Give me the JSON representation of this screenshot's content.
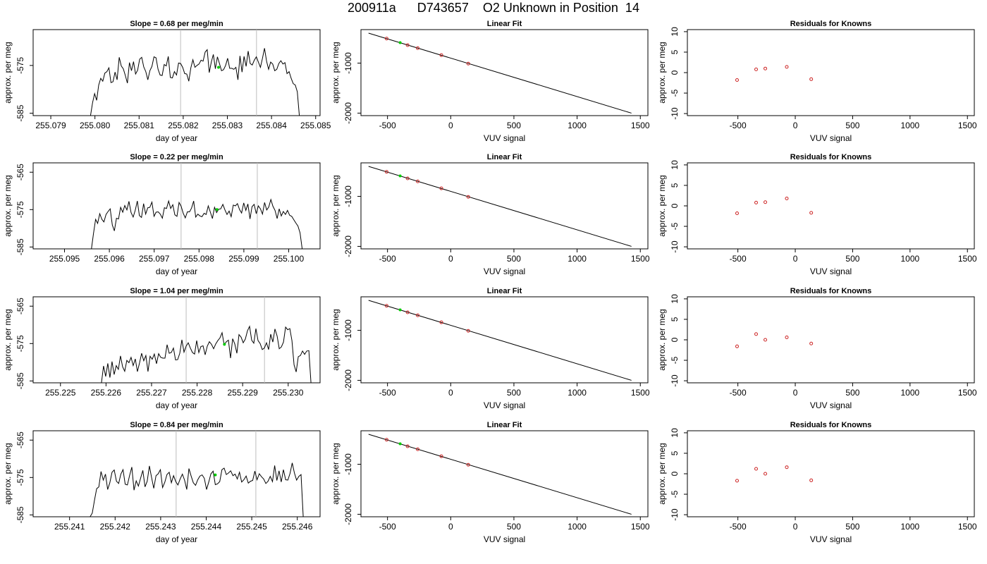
{
  "header": {
    "title": "200911a      D743657    O2 Unknown in Position  14"
  },
  "chart_data": {
    "type": "grid",
    "rows": [
      {
        "timeseries": {
          "type": "line",
          "title": "Slope =  0.68  per meg/min",
          "xlabel": "day of year",
          "ylabel": "approx. per meg",
          "xlim": [
            255.0786,
            255.0851
          ],
          "ylim": [
            -585.5,
            -567.5
          ],
          "xticks": [
            "255.079",
            "255.080",
            "255.081",
            "255.082",
            "255.083",
            "255.084",
            "255.085"
          ],
          "yticks": [
            "-585",
            "-575"
          ],
          "vlines": [
            255.08194,
            255.08366
          ],
          "marker": {
            "x": 255.0828,
            "y": -575.4
          },
          "x_start": 255.0799,
          "x_end": 255.08463,
          "y": [
            -585.5,
            -582.8,
            -580.9,
            -582.3,
            -579.1,
            -577.7,
            -578.3,
            -576.6,
            -576.3,
            -575.5,
            -578.6,
            -578.4,
            -576.4,
            -578.0,
            -573.3,
            -575.1,
            -575.7,
            -577.1,
            -578.7,
            -574.4,
            -576.1,
            -574.2,
            -576.8,
            -576.0,
            -573.7,
            -573.3,
            -575.3,
            -576.3,
            -578.0,
            -576.1,
            -575.2,
            -573.2,
            -573.4,
            -575.8,
            -577.0,
            -577.1,
            -574.8,
            -575.1,
            -573.1,
            -577.5,
            -577.6,
            -576.3,
            -577.0,
            -574.5,
            -574.6,
            -575.4,
            -576.7,
            -576.8,
            -578.3,
            -575.5,
            -573.8,
            -575.4,
            -575.0,
            -574.7,
            -573.9,
            -574.1,
            -572.2,
            -571.7,
            -576.5,
            -574.3,
            -572.7,
            -575.7,
            -573.2,
            -574.6,
            -576.1,
            -575.9,
            -575.0,
            -573.5,
            -575.6,
            -575.6,
            -575.8,
            -575.4,
            -578.0,
            -573.0,
            -576.4,
            -573.1,
            -575.2,
            -572.0,
            -574.6,
            -574.9,
            -573.9,
            -573.2,
            -574.3,
            -575.4,
            -573.5,
            -571.4,
            -574.1,
            -575.8,
            -574.3,
            -574.7,
            -576.1,
            -575.8,
            -574.6,
            -574.0,
            -574.7,
            -574.4,
            -576.7,
            -576.3,
            -577.7,
            -578.8,
            -579.1,
            -580.5,
            -585.5
          ]
        },
        "fit": {
          "type": "line",
          "title": "Linear Fit",
          "xlabel": "VUV signal",
          "ylabel": "approx. per meg",
          "xlim": [
            -710,
            1560
          ],
          "ylim": [
            -2050,
            -330
          ],
          "xticks": [
            "-500",
            "0",
            "500",
            "1000",
            "1500"
          ],
          "yticks": [
            "-1000",
            "-2000"
          ],
          "line": {
            "x": [
              -650,
              1430
            ],
            "y": [
              -400,
              -2000
            ]
          },
          "knowns": {
            "x": [
              -507,
              -341,
              -261,
              -74,
              139
            ],
            "y": [
              -510,
              -640,
              -700,
              -840,
              -1010
            ]
          },
          "unknown": {
            "x": -400,
            "y": -590
          }
        },
        "residuals": {
          "type": "scatter",
          "title": "Residuals for Knowns",
          "xlabel": "VUV signal",
          "ylabel": "approx. per meg",
          "xlim": [
            -940,
            1560
          ],
          "ylim": [
            -10.5,
            10.5
          ],
          "xticks": [
            "-500",
            "0",
            "500",
            "1000",
            "1500"
          ],
          "yticks": [
            "-10",
            "-5",
            "0",
            "5",
            "10"
          ],
          "x": [
            -507,
            -341,
            -261,
            -74,
            139
          ],
          "y": [
            -1.8,
            0.8,
            1.0,
            1.4,
            -1.6
          ]
        }
      },
      {
        "timeseries": {
          "type": "line",
          "title": "Slope =  0.22  per meg/min",
          "xlabel": "day of year",
          "ylabel": "approx. per meg",
          "xlim": [
            255.0943,
            255.1007
          ],
          "ylim": [
            -585.5,
            -562.5
          ],
          "xticks": [
            "255.095",
            "255.096",
            "255.097",
            "255.098",
            "255.099",
            "255.100"
          ],
          "yticks": [
            "-585",
            "-575",
            "-565"
          ],
          "vlines": [
            255.0976,
            255.0993
          ],
          "marker": {
            "x": 255.0984,
            "y": -575.0
          },
          "x_start": 255.0956,
          "x_end": 255.1003,
          "y": [
            -585.5,
            -581.4,
            -577.6,
            -578.7,
            -576.1,
            -577.6,
            -578.3,
            -576.3,
            -575.5,
            -574.8,
            -579.1,
            -580.7,
            -577.3,
            -577.5,
            -574.4,
            -575.7,
            -573.9,
            -575.1,
            -572.8,
            -575.8,
            -577.0,
            -575.2,
            -572.7,
            -576.6,
            -577.1,
            -573.4,
            -576.2,
            -574.5,
            -574.4,
            -573.0,
            -576.8,
            -575.7,
            -575.6,
            -576.2,
            -577.3,
            -574.5,
            -574.7,
            -572.7,
            -574.7,
            -573.7,
            -576.4,
            -576.8,
            -573.1,
            -574.1,
            -576.0,
            -577.2,
            -575.6,
            -575.6,
            -574.6,
            -572.7,
            -577.0,
            -576.2,
            -576.7,
            -576.9,
            -576.0,
            -576.3,
            -574.0,
            -575.7,
            -577.4,
            -574.4,
            -575.8,
            -574.9,
            -574.8,
            -573.6,
            -575.1,
            -576.3,
            -575.4,
            -576.9,
            -573.8,
            -574.0,
            -573.4,
            -575.0,
            -575.9,
            -573.2,
            -575.2,
            -573.5,
            -577.5,
            -574.2,
            -573.6,
            -576.1,
            -574.0,
            -574.8,
            -576.2,
            -573.1,
            -575.1,
            -574.3,
            -572.3,
            -574.1,
            -575.2,
            -577.4,
            -574.8,
            -576.7,
            -575.5,
            -576.3,
            -575.2,
            -576.5,
            -576.8,
            -577.7,
            -578.6,
            -579.4,
            -581.2,
            -585.5
          ]
        },
        "fit": {
          "type": "line",
          "title": "Linear Fit",
          "xlabel": "VUV signal",
          "ylabel": "approx. per meg",
          "xlim": [
            -710,
            1560
          ],
          "ylim": [
            -2050,
            -330
          ],
          "xticks": [
            "-500",
            "0",
            "500",
            "1000",
            "1500"
          ],
          "yticks": [
            "-1000",
            "-2000"
          ],
          "line": {
            "x": [
              -650,
              1430
            ],
            "y": [
              -400,
              -2000
            ]
          },
          "knowns": {
            "x": [
              -507,
              -341,
              -261,
              -74,
              139
            ],
            "y": [
              -510,
              -640,
              -700,
              -840,
              -1010
            ]
          },
          "unknown": {
            "x": -400,
            "y": -590
          }
        },
        "residuals": {
          "type": "scatter",
          "title": "Residuals for Knowns",
          "xlabel": "VUV signal",
          "ylabel": "approx. per meg",
          "xlim": [
            -940,
            1560
          ],
          "ylim": [
            -10.5,
            10.5
          ],
          "xticks": [
            "-500",
            "0",
            "500",
            "1000",
            "1500"
          ],
          "yticks": [
            "-10",
            "-5",
            "0",
            "5",
            "10"
          ],
          "x": [
            -507,
            -341,
            -261,
            -74,
            139
          ],
          "y": [
            -1.8,
            0.8,
            0.9,
            1.8,
            -1.7
          ]
        }
      },
      {
        "timeseries": {
          "type": "line",
          "title": "Slope =  1.04  per meg/min",
          "xlabel": "day of year",
          "ylabel": "approx. per meg",
          "xlim": [
            255.2244,
            255.2307
          ],
          "ylim": [
            -585.5,
            -562.5
          ],
          "xticks": [
            "255.225",
            "255.226",
            "255.227",
            "255.228",
            "255.229",
            "255.230"
          ],
          "yticks": [
            "-585",
            "-575",
            "-565"
          ],
          "vlines": [
            255.22776,
            255.22948
          ],
          "marker": {
            "x": 255.2286,
            "y": -575.2
          },
          "x_start": 255.2259,
          "x_end": 255.2305,
          "y": [
            -585.5,
            -581.0,
            -583.8,
            -580.3,
            -584.1,
            -579.8,
            -583.3,
            -580.9,
            -581.9,
            -578.3,
            -581.2,
            -582.4,
            -579.5,
            -580.1,
            -578.7,
            -580.9,
            -579.1,
            -582.5,
            -580.2,
            -577.6,
            -579.6,
            -578.2,
            -582.5,
            -578.4,
            -579.2,
            -577.8,
            -580.4,
            -577.7,
            -578.7,
            -578.9,
            -578.9,
            -575.3,
            -577.6,
            -577.4,
            -576.2,
            -579.4,
            -579.3,
            -577.6,
            -574.0,
            -577.3,
            -575.7,
            -574.8,
            -576.2,
            -577.4,
            -577.8,
            -574.2,
            -577.4,
            -575.8,
            -575.6,
            -578.0,
            -575.7,
            -574.5,
            -575.2,
            -576.4,
            -575.1,
            -574.2,
            -573.5,
            -572.1,
            -575.4,
            -574.5,
            -574.1,
            -578.9,
            -573.7,
            -575.1,
            -577.6,
            -572.6,
            -573.3,
            -574.8,
            -573.8,
            -571.6,
            -570.4,
            -574.1,
            -574.9,
            -571.0,
            -574.2,
            -575.0,
            -576.6,
            -576.2,
            -574.8,
            -576.6,
            -572.5,
            -574.6,
            -571.1,
            -573.0,
            -576.4,
            -575.9,
            -574.6,
            -570.6,
            -571.3,
            -571.0,
            -574.2,
            -580.7,
            -582.6,
            -578.5,
            -578.2,
            -577.0,
            -577.9,
            -577.0,
            -576.9,
            -585.5
          ]
        },
        "fit": {
          "type": "line",
          "title": "Linear Fit",
          "xlabel": "VUV signal",
          "ylabel": "approx. per meg",
          "xlim": [
            -710,
            1560
          ],
          "ylim": [
            -2050,
            -330
          ],
          "xticks": [
            "-500",
            "0",
            "500",
            "1000",
            "1500"
          ],
          "yticks": [
            "-1000",
            "-2000"
          ],
          "line": {
            "x": [
              -650,
              1430
            ],
            "y": [
              -400,
              -2000
            ]
          },
          "knowns": {
            "x": [
              -507,
              -341,
              -261,
              -74,
              139
            ],
            "y": [
              -510,
              -640,
              -700,
              -840,
              -1010
            ]
          },
          "unknown": {
            "x": -400,
            "y": -590
          }
        },
        "residuals": {
          "type": "scatter",
          "title": "Residuals for Knowns",
          "xlabel": "VUV signal",
          "ylabel": "approx. per meg",
          "xlim": [
            -940,
            1560
          ],
          "ylim": [
            -10.5,
            10.5
          ],
          "xticks": [
            "-500",
            "0",
            "500",
            "1000",
            "1500"
          ],
          "yticks": [
            "-10",
            "-5",
            "0",
            "5",
            "10"
          ],
          "x": [
            -507,
            -341,
            -261,
            -74,
            139
          ],
          "y": [
            -1.6,
            1.4,
            0.0,
            0.6,
            -0.9
          ]
        }
      },
      {
        "timeseries": {
          "type": "line",
          "title": "Slope =  0.84  per meg/min",
          "xlabel": "day of year",
          "ylabel": "approx. per meg",
          "xlim": [
            255.2402,
            255.2465
          ],
          "ylim": [
            -585.5,
            -562.5
          ],
          "xticks": [
            "255.241",
            "255.242",
            "255.243",
            "255.244",
            "255.245",
            "255.246"
          ],
          "yticks": [
            "-585",
            "-575",
            "-565"
          ],
          "vlines": [
            255.24334,
            255.24509
          ],
          "marker": {
            "x": 255.2442,
            "y": -574.3
          },
          "x_start": 255.24145,
          "x_end": 255.24613,
          "y": [
            -585.5,
            -584.5,
            -581.1,
            -578.0,
            -577.5,
            -573.4,
            -575.7,
            -574.1,
            -578.2,
            -576.4,
            -573.6,
            -573.0,
            -576.0,
            -576.6,
            -574.1,
            -572.9,
            -576.8,
            -577.0,
            -574.4,
            -572.2,
            -578.4,
            -575.9,
            -577.3,
            -575.2,
            -573.1,
            -577.5,
            -576.0,
            -571.9,
            -575.0,
            -577.9,
            -574.5,
            -574.0,
            -572.9,
            -577.7,
            -576.3,
            -574.2,
            -573.6,
            -576.4,
            -574.5,
            -576.1,
            -577.0,
            -575.4,
            -574.1,
            -575.7,
            -578.2,
            -572.6,
            -574.6,
            -576.4,
            -577.1,
            -575.6,
            -574.6,
            -574.3,
            -575.2,
            -578.2,
            -576.2,
            -574.0,
            -573.3,
            -576.9,
            -576.7,
            -576.1,
            -572.9,
            -572.5,
            -574.2,
            -573.8,
            -573.2,
            -574.5,
            -574.1,
            -575.4,
            -573.6,
            -576.2,
            -575.6,
            -574.6,
            -576.5,
            -576.0,
            -575.8,
            -573.3,
            -575.6,
            -574.0,
            -574.8,
            -575.4,
            -576.6,
            -576.0,
            -574.7,
            -576.1,
            -571.8,
            -575.8,
            -573.2,
            -576.2,
            -572.9,
            -575.6,
            -575.7,
            -573.9,
            -571.1,
            -573.8,
            -575.7,
            -574.7,
            -574.2,
            -585.5
          ]
        },
        "fit": {
          "type": "line",
          "title": "Linear Fit",
          "xlabel": "VUV signal",
          "ylabel": "approx. per meg",
          "xlim": [
            -710,
            1560
          ],
          "ylim": [
            -2050,
            -330
          ],
          "xticks": [
            "-500",
            "0",
            "500",
            "1000",
            "1500"
          ],
          "yticks": [
            "-1000",
            "-2000"
          ],
          "line": {
            "x": [
              -650,
              1430
            ],
            "y": [
              -400,
              -2000
            ]
          },
          "knowns": {
            "x": [
              -507,
              -341,
              -261,
              -74,
              139
            ],
            "y": [
              -510,
              -640,
              -700,
              -840,
              -1010
            ]
          },
          "unknown": {
            "x": -400,
            "y": -590
          }
        },
        "residuals": {
          "type": "scatter",
          "title": "Residuals for Knowns",
          "xlabel": "VUV signal",
          "ylabel": "approx. per meg",
          "xlim": [
            -940,
            1560
          ],
          "ylim": [
            -10.5,
            10.5
          ],
          "xticks": [
            "-500",
            "0",
            "500",
            "1000",
            "1500"
          ],
          "yticks": [
            "-10",
            "-5",
            "0",
            "5",
            "10"
          ],
          "x": [
            -507,
            -341,
            -261,
            -74,
            139
          ],
          "y": [
            -1.7,
            1.2,
            0.0,
            1.6,
            -1.6
          ]
        }
      }
    ]
  }
}
